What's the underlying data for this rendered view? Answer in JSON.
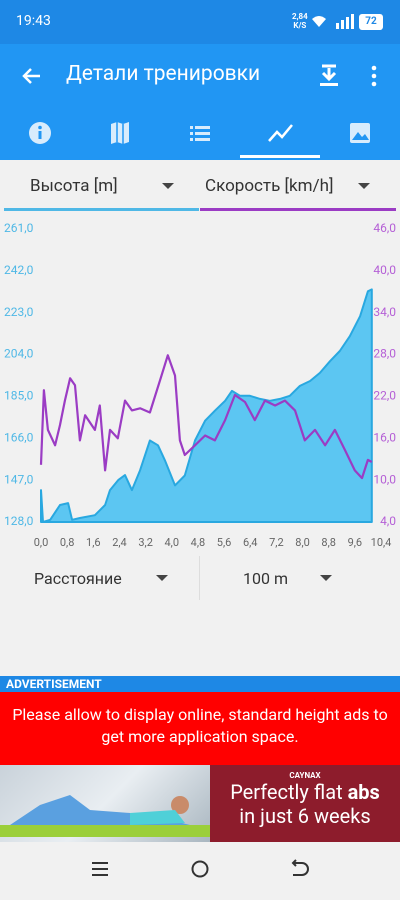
{
  "status_bar": {
    "time": "19:43",
    "speed": "2,84",
    "speed_unit": "K/S",
    "battery": "72"
  },
  "app_bar": {
    "title": "Детали тренировки"
  },
  "selectors": {
    "x_axis": "Расстояние",
    "interval": "100 m"
  },
  "chart_data": {
    "type": "line",
    "xlim": [
      0,
      10.4
    ],
    "xticks": [
      {
        "value": 0,
        "label": "0,0"
      },
      {
        "value": 0.8,
        "label": "0,8"
      },
      {
        "value": 1.6,
        "label": "1,6"
      },
      {
        "value": 2.4,
        "label": "2,4"
      },
      {
        "value": 3.2,
        "label": "3,2"
      },
      {
        "value": 4,
        "label": "4,0"
      },
      {
        "value": 4.8,
        "label": "4,8"
      },
      {
        "value": 5.6,
        "label": "5,6"
      },
      {
        "value": 6.4,
        "label": "6,4"
      },
      {
        "value": 7.2,
        "label": "7,2"
      },
      {
        "value": 8,
        "label": "8,0"
      },
      {
        "value": 8.8,
        "label": "8,8"
      },
      {
        "value": 9.6,
        "label": "9,6"
      },
      {
        "value": 10.4,
        "label": "10,4"
      }
    ],
    "ylim": [
      128,
      261
    ],
    "yticks": [
      {
        "value": 128,
        "label": "128,0"
      },
      {
        "value": 147,
        "label": "147,0"
      },
      {
        "value": 166,
        "label": "166,0"
      },
      {
        "value": 185,
        "label": "185,0"
      },
      {
        "value": 204,
        "label": "204,0"
      },
      {
        "value": 223,
        "label": "223,0"
      },
      {
        "value": 242,
        "label": "242,0"
      },
      {
        "value": 261,
        "label": "261,0"
      }
    ],
    "y2lim": [
      4,
      46
    ],
    "y2ticks": [
      {
        "value": 4,
        "label": "4,0"
      },
      {
        "value": 10,
        "label": "10,0"
      },
      {
        "value": 16,
        "label": "16,0"
      },
      {
        "value": 22,
        "label": "22,0"
      },
      {
        "value": 28,
        "label": "28,0"
      },
      {
        "value": 34,
        "label": "34,0"
      },
      {
        "value": 40,
        "label": "40,0"
      },
      {
        "value": 46,
        "label": "46,0"
      }
    ],
    "series": [
      {
        "name": "Высота [m]",
        "color": "#29a8e0",
        "fill": "#5cc6f2",
        "x": [
          0,
          0.06,
          0.28,
          0.58,
          0.83,
          0.95,
          1.19,
          1.65,
          1.96,
          2.11,
          2.36,
          2.57,
          2.78,
          3.03,
          3.33,
          3.58,
          3.79,
          4.1,
          4.4,
          4.71,
          5.02,
          5.32,
          5.63,
          5.84,
          6.09,
          6.39,
          6.7,
          7.0,
          7.31,
          7.61,
          7.92,
          8.23,
          8.53,
          8.84,
          9.14,
          9.45,
          9.76,
          10.0,
          10.12
        ],
        "values": [
          142.5,
          128,
          129,
          135.7,
          136.6,
          129,
          129.8,
          131.1,
          135.7,
          142.5,
          147,
          149.3,
          142.5,
          151.5,
          165,
          162.8,
          156,
          144.6,
          149.1,
          165,
          174,
          178.5,
          183,
          187.5,
          185.3,
          185.3,
          183.9,
          183,
          183.9,
          185.3,
          189.8,
          192,
          195.7,
          201,
          205.6,
          212.4,
          221.4,
          232.7,
          233.6
        ]
      },
      {
        "name": "Скорость [km/h]",
        "color": "#9b3cc4",
        "axis": "y2",
        "x": [
          0,
          0.09,
          0.21,
          0.43,
          0.58,
          0.73,
          0.89,
          1.04,
          1.19,
          1.35,
          1.65,
          1.8,
          1.96,
          2.11,
          2.35,
          2.57,
          2.78,
          3.03,
          3.33,
          3.64,
          3.88,
          4.1,
          4.25,
          4.4,
          4.71,
          5.02,
          5.32,
          5.63,
          5.93,
          6.24,
          6.54,
          6.85,
          7.16,
          7.46,
          7.77,
          8.07,
          8.38,
          8.69,
          8.99,
          9.3,
          9.6,
          9.82,
          10.0,
          10.12
        ],
        "values": [
          12.2,
          22.9,
          17.2,
          15.0,
          17.9,
          21.4,
          24.6,
          23.6,
          15.7,
          19.3,
          17.2,
          20.7,
          11.4,
          17.2,
          16.0,
          21.4,
          20.0,
          20.3,
          19.7,
          24.3,
          27.9,
          25.0,
          15.7,
          13.6,
          15.0,
          16.4,
          15.7,
          18.6,
          22.2,
          21.2,
          18.6,
          21.4,
          20.7,
          21.4,
          20.0,
          15.7,
          17.2,
          15.0,
          17.2,
          14.3,
          11.4,
          10.3,
          12.9,
          12.6
        ]
      }
    ]
  },
  "ad": {
    "label": "ADVERTISEMENT",
    "notice": "Please allow to display online, standard height ads to get more application space.",
    "brand": "CAYNAX",
    "headline_start": "Perfectly flat",
    "headline_bold": "abs",
    "headline_end": "in just 6 weeks"
  }
}
